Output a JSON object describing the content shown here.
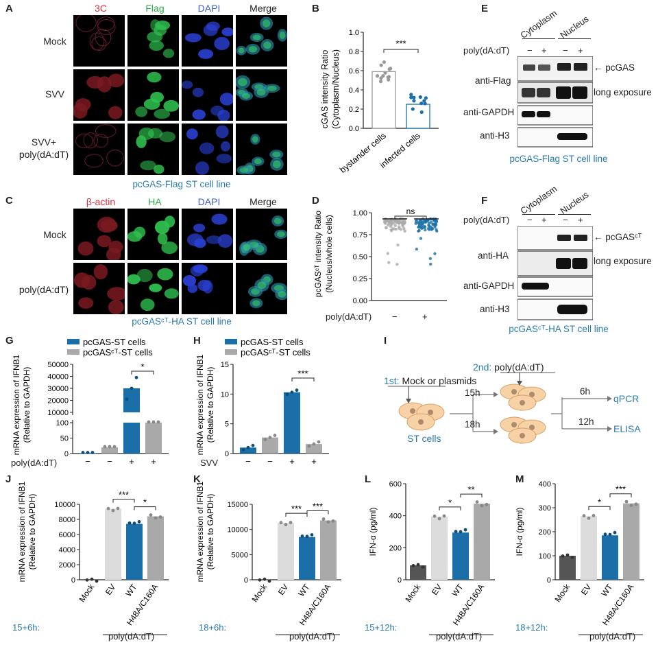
{
  "panels": {
    "A": {
      "letter": "A",
      "channels": [
        "3C",
        "Flag",
        "DAPI",
        "Merge"
      ],
      "channel_colors": [
        "#d9303a",
        "#2ea84a",
        "#3b5ac4",
        "#222222"
      ],
      "rows": [
        "Mock",
        "SVV",
        "SVV+\npoly(dA:dT)"
      ],
      "caption": "pcGAS-Flag ST cell line"
    },
    "C": {
      "letter": "C",
      "channels": [
        "β-actin",
        "HA",
        "DAPI",
        "Merge"
      ],
      "channel_colors": [
        "#d9303a",
        "#2ea84a",
        "#3b5ac4",
        "#222222"
      ],
      "rows": [
        "Mock",
        "poly(dA:dT)"
      ],
      "caption": "pcGASᶜᵀ-HA ST cell line"
    },
    "B": {
      "letter": "B",
      "ylabel": "cGAS intensity Ratio\n(Cytoplasm/Nucleus)",
      "categories": [
        "bystander cells",
        "infected cells"
      ],
      "sig": "***"
    },
    "D": {
      "letter": "D",
      "ylabel": "pcGASᶜᵀ intensity Ratio\n(Nucleus/whole cells)",
      "sig": "ns",
      "treat_label": "poly(dA:dT)",
      "treat": [
        "−",
        "+"
      ]
    },
    "E": {
      "letter": "E",
      "fractions": [
        "Cytoplasm",
        "Nucleus"
      ],
      "treat_label": "poly(dA:dT)",
      "treat": [
        "−",
        "+",
        "−",
        "+"
      ],
      "rows": [
        "anti-Flag",
        "anti-GAPDH",
        "anti-H3"
      ],
      "arrow_label": "pcGAS",
      "long_exposure": "long exposure",
      "caption": "pcGAS-Flag ST cell line"
    },
    "F": {
      "letter": "F",
      "fractions": [
        "Cytoplasm",
        "Nucleus"
      ],
      "treat_label": "poly(dA:dT)",
      "treat": [
        "−",
        "+",
        "−",
        "+"
      ],
      "rows": [
        "anti-HA",
        "anti-GAPDH",
        "anti-H3"
      ],
      "arrow_label": "pcGASᶜᵀ",
      "long_exposure": "long exposure",
      "caption": "pcGASᶜᵀ-HA ST cell line"
    },
    "G": {
      "letter": "G",
      "legend": [
        "pcGAS-ST cells",
        "pcGASᶜᵀ-ST cells"
      ],
      "ylabel": "mRNA expression of IFNB1\n(Relative to GAPDH)",
      "treat_label": "poly(dA:dT)",
      "treat": [
        "−",
        "−",
        "+",
        "+"
      ],
      "sig": "*"
    },
    "H": {
      "letter": "H",
      "legend": [
        "pcGAS-ST cells",
        "pcGASᶜᵀ-ST cells"
      ],
      "ylabel": "mRNA expression of IFNB1\n(Relative to GAPDH)",
      "treat_label": "SVV",
      "treat": [
        "−",
        "−",
        "+",
        "+"
      ],
      "sig": "***"
    },
    "I": {
      "letter": "I",
      "first": "1st:",
      "first_text": "Mock or plasmids",
      "second": "2nd:",
      "second_text": "poly(dA:dT)",
      "cells": "ST cells",
      "t1": "15h",
      "t2": "18h",
      "t3": "6h",
      "t4": "12h",
      "out1": "qPCR",
      "out2": "ELISA"
    },
    "J": {
      "letter": "J",
      "timing": "15+6h:",
      "group": "poly(dA:dT)",
      "ylabel": "mRNA expression of IFNB1\n(Relative to GAPDH)",
      "sig": [
        "***",
        "*"
      ]
    },
    "K": {
      "letter": "K",
      "timing": "18+6h:",
      "group": "poly(dA:dT)",
      "ylabel": "mRNA expression of IFNB1\n(Relative to GAPDH)",
      "sig": [
        "***",
        "***"
      ]
    },
    "L": {
      "letter": "L",
      "timing": "15+12h:",
      "group": "poly(dA:dT)",
      "ylabel": "IFN-α (pg/ml)",
      "sig": [
        "*",
        "**"
      ]
    },
    "M": {
      "letter": "M",
      "timing": "18+12h:",
      "group": "poly(dA:dT)",
      "ylabel": "IFN-α (pg/ml)",
      "sig": [
        "*",
        "***"
      ]
    }
  },
  "colors": {
    "blue": "#1a6fa8",
    "grey": "#a9a9a9",
    "light": "#dcdcdc",
    "dark": "#555555",
    "accent": "#2a7ab0"
  },
  "chart_data": [
    {
      "id": "B",
      "type": "bar",
      "categories": [
        "bystander cells",
        "infected cells"
      ],
      "values": [
        0.59,
        0.25
      ],
      "ylim": [
        0,
        1.0
      ],
      "yticks": [
        0.0,
        0.2,
        0.4,
        0.6,
        0.8,
        1.0
      ],
      "ylabel": "cGAS intensity Ratio (Cytoplasm/Nucleus)"
    },
    {
      "id": "D",
      "type": "scatter",
      "categories": [
        "−",
        "+"
      ],
      "values": [
        0.93,
        0.93
      ],
      "ylim": [
        0,
        1.0
      ],
      "yticks": [
        0.0,
        0.25,
        0.5,
        0.75,
        1.0
      ],
      "ylabel": "pcGASCT intensity Ratio (Nucleus/whole cells)"
    },
    {
      "id": "G",
      "type": "bar",
      "categories": [
        "−",
        "−",
        "+",
        "+"
      ],
      "series": [
        {
          "name": "pcGAS-ST cells",
          "values": [
            1,
            null,
            30000,
            null
          ]
        },
        {
          "name": "pcGASCT-ST cells",
          "values": [
            null,
            20,
            null,
            100
          ]
        }
      ],
      "yticks": [
        0,
        50,
        100,
        10000,
        20000,
        30000,
        40000,
        50000
      ],
      "ylabel": "mRNA expression of IFNB1 (Relative to GAPDH)"
    },
    {
      "id": "H",
      "type": "bar",
      "categories": [
        "−",
        "−",
        "+",
        "+"
      ],
      "series": [
        {
          "name": "pcGAS-ST cells",
          "values": [
            1.0,
            null,
            10.3,
            null
          ]
        },
        {
          "name": "pcGASCT-ST cells",
          "values": [
            null,
            2.7,
            null,
            1.6
          ]
        }
      ],
      "ylim": [
        0,
        15
      ],
      "yticks": [
        0,
        5,
        10,
        15
      ],
      "ylabel": "mRNA expression of IFNB1 (Relative to GAPDH)"
    },
    {
      "id": "J",
      "type": "bar",
      "categories": [
        "Mock",
        "EV",
        "WT",
        "H48A/C160A"
      ],
      "values": [
        0,
        9400,
        7400,
        8400
      ],
      "ylim": [
        0,
        10000
      ],
      "yticks": [
        0,
        2000,
        4000,
        6000,
        8000,
        10000
      ],
      "ylabel": "mRNA expression of IFNB1 (Relative to GAPDH)"
    },
    {
      "id": "K",
      "type": "bar",
      "categories": [
        "Mock",
        "EV",
        "WT",
        "H48A/C160A"
      ],
      "values": [
        0,
        11300,
        8500,
        11800
      ],
      "ylim": [
        0,
        15000
      ],
      "yticks": [
        0,
        5000,
        10000,
        15000
      ],
      "ylabel": "mRNA expression of IFNB1 (Relative to GAPDH)"
    },
    {
      "id": "L",
      "type": "bar",
      "categories": [
        "Mock",
        "EV",
        "WT",
        "H48A/C160A"
      ],
      "values": [
        90,
        395,
        295,
        475
      ],
      "ylim": [
        0,
        600
      ],
      "yticks": [
        0,
        200,
        400,
        600
      ],
      "ylabel": "IFN-α (pg/ml)"
    },
    {
      "id": "M",
      "type": "bar",
      "categories": [
        "Mock",
        "EV",
        "WT",
        "H48A/C160A"
      ],
      "values": [
        100,
        265,
        185,
        318
      ],
      "ylim": [
        0,
        400
      ],
      "yticks": [
        0,
        100,
        200,
        300,
        400
      ],
      "ylabel": "IFN-α (pg/ml)"
    }
  ]
}
